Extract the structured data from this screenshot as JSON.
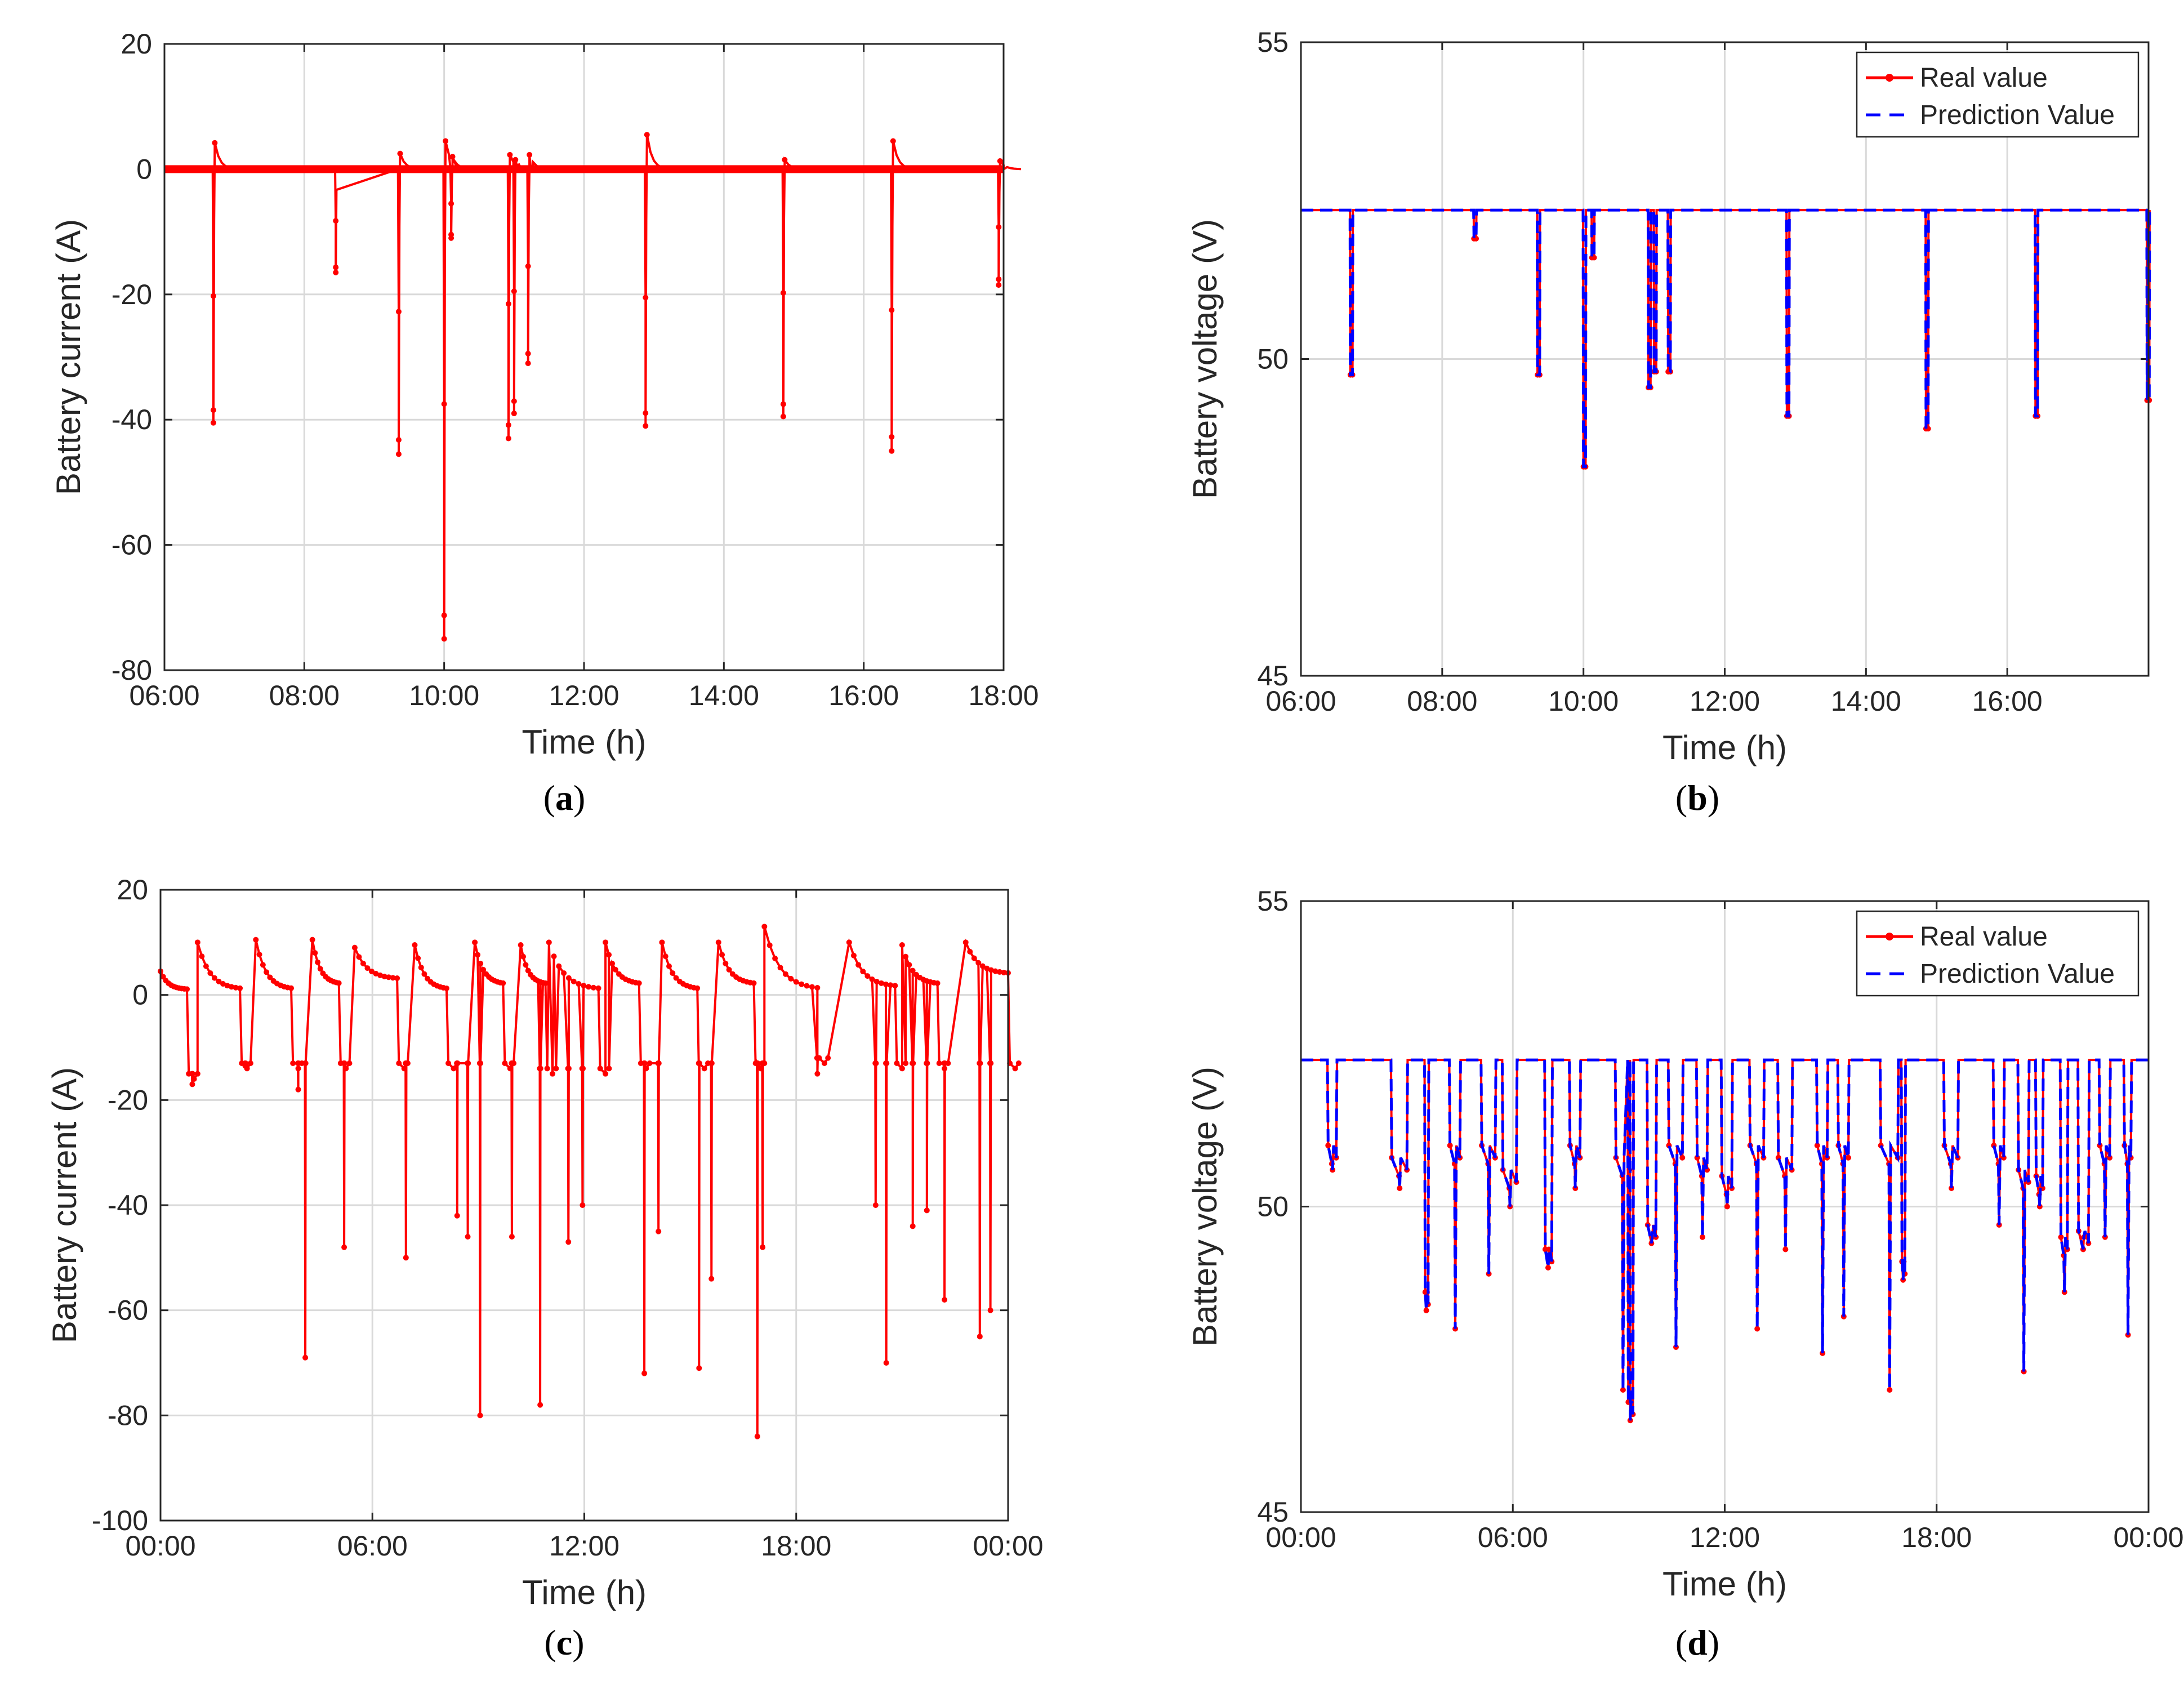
{
  "figure": {
    "panel_labels": [
      "a",
      "b",
      "c",
      "d"
    ]
  },
  "colors": {
    "real": "#ff0000",
    "prediction": "#0000ff",
    "grid": "#d9d9d9",
    "axis": "#000000"
  },
  "chart_data": [
    {
      "id": "a",
      "type": "line",
      "xlabel": "Time (h)",
      "ylabel": "Battery current (A)",
      "xlim": [
        6,
        18
      ],
      "ylim": [
        -80,
        20
      ],
      "xticks": [
        6,
        8,
        10,
        12,
        14,
        16,
        18
      ],
      "xtick_labels": [
        "06:00",
        "08:00",
        "10:00",
        "12:00",
        "14:00",
        "16:00",
        "18:00"
      ],
      "yticks": [
        -80,
        -60,
        -40,
        -20,
        0,
        20
      ],
      "ytick_labels": [
        "-80",
        "-60",
        "-40",
        "-20",
        "0",
        "20"
      ],
      "grid": true,
      "legend": null,
      "baseline": 0,
      "series": [
        {
          "name": "Real value",
          "color": "#ff0000",
          "style": "solid-marker",
          "spikes": [
            {
              "t": 6.7,
              "min": -40.5,
              "peak": 4.2
            },
            {
              "t": 8.45,
              "min": -16.5,
              "peak": 0
            },
            {
              "t": 9.35,
              "min": -45.5,
              "peak": 2.5
            },
            {
              "t": 10.0,
              "min": -75.0,
              "peak": 4.5
            },
            {
              "t": 10.1,
              "min": -11.0,
              "peak": 2.0
            },
            {
              "t": 10.92,
              "min": -43.0,
              "peak": 2.3
            },
            {
              "t": 11.0,
              "min": -39.0,
              "peak": 1.5
            },
            {
              "t": 11.2,
              "min": -31.0,
              "peak": 2.3
            },
            {
              "t": 12.88,
              "min": -41.0,
              "peak": 5.5
            },
            {
              "t": 14.85,
              "min": -39.5,
              "peak": 1.5
            },
            {
              "t": 16.4,
              "min": -45.0,
              "peak": 4.5
            },
            {
              "t": 17.93,
              "min": -18.5,
              "peak": 1.3
            }
          ]
        }
      ]
    },
    {
      "id": "b",
      "type": "line",
      "xlabel": "Time (h)",
      "ylabel": "Battery voltage (V)",
      "xlim": [
        6,
        18
      ],
      "ylim": [
        45,
        55
      ],
      "xticks": [
        6,
        8,
        10,
        12,
        14,
        16
      ],
      "xtick_labels": [
        "06:00",
        "08:00",
        "10:00",
        "12:00",
        "14:00",
        "16:00"
      ],
      "yticks": [
        45,
        50,
        55
      ],
      "ytick_labels": [
        "45",
        "50",
        "55"
      ],
      "grid": true,
      "legend": "top-right",
      "baseline": 52.35,
      "series": [
        {
          "name": "Real value",
          "color": "#ff0000",
          "style": "solid-marker"
        },
        {
          "name": "Prediction Value",
          "color": "#0000ff",
          "style": "dashed"
        }
      ],
      "dips": [
        {
          "t": 6.7,
          "min": 49.75
        },
        {
          "t": 8.45,
          "min": 51.9
        },
        {
          "t": 9.35,
          "min": 49.75
        },
        {
          "t": 10.0,
          "min": 48.3
        },
        {
          "t": 10.12,
          "min": 51.6
        },
        {
          "t": 10.92,
          "min": 49.55
        },
        {
          "t": 11.0,
          "min": 49.8
        },
        {
          "t": 11.2,
          "min": 49.8
        },
        {
          "t": 12.88,
          "min": 49.1
        },
        {
          "t": 14.85,
          "min": 48.9
        },
        {
          "t": 16.4,
          "min": 49.1
        },
        {
          "t": 17.98,
          "min": 49.35
        }
      ]
    },
    {
      "id": "c",
      "type": "line",
      "xlabel": "Time (h)",
      "ylabel": "Battery current (A)",
      "xlim": [
        0,
        24
      ],
      "ylim": [
        -100,
        20
      ],
      "xticks": [
        0,
        6,
        12,
        18,
        24
      ],
      "xtick_labels": [
        "00:00",
        "06:00",
        "12:00",
        "18:00",
        "00:00"
      ],
      "yticks": [
        -100,
        -80,
        -60,
        -40,
        -20,
        0,
        20
      ],
      "ytick_labels": [
        "-100",
        "-80",
        "-60",
        "-40",
        "-20",
        "0",
        "20"
      ],
      "grid": true,
      "legend": null,
      "series": [
        {
          "name": "Real value",
          "color": "#ff0000",
          "style": "solid-marker",
          "cycles": [
            {
              "t0": 0.0,
              "t1": 0.75,
              "start": 4.5,
              "end": 1.0,
              "plateau": -15.0,
              "spikes": [
                {
                  "t": 0.9,
                  "min": -17
                }
              ]
            },
            {
              "t0": 1.05,
              "t1": 2.25,
              "start": 10.0,
              "end": 1.0,
              "plateau": -13.0,
              "spikes": [
                {
                  "t": 2.4,
                  "min": -13.5
                }
              ]
            },
            {
              "t0": 2.7,
              "t1": 3.7,
              "start": 10.5,
              "end": 1.0,
              "plateau": -13.0,
              "spikes": [
                {
                  "t": 3.9,
                  "min": -18
                }
              ]
            },
            {
              "t0": 4.3,
              "t1": 5.05,
              "start": 10.5,
              "end": 2.0,
              "plateau": -13.0,
              "spikes": [
                {
                  "t": 4.1,
                  "min": -69
                },
                {
                  "t": 5.2,
                  "min": -48
                }
              ]
            },
            {
              "t0": 5.5,
              "t1": 6.7,
              "start": 9.0,
              "end": 3.0,
              "plateau": -13.0,
              "spikes": [
                {
                  "t": 6.95,
                  "min": -50
                }
              ]
            },
            {
              "t0": 7.2,
              "t1": 8.1,
              "start": 9.5,
              "end": 1.0,
              "plateau": -13.0,
              "spikes": [
                {
                  "t": 8.4,
                  "min": -42
                },
                {
                  "t": 8.7,
                  "min": -46
                }
              ]
            },
            {
              "t0": 8.9,
              "t1": 9.7,
              "start": 10.0,
              "end": 2.0,
              "plateau": -13.0,
              "spikes": [
                {
                  "t": 9.05,
                  "min": -80
                },
                {
                  "t": 9.95,
                  "min": -46
                }
              ]
            },
            {
              "t0": 10.2,
              "t1": 10.9,
              "start": 9.5,
              "end": 2.0,
              "plateau": -14.0,
              "spikes": [
                {
                  "t": 10.75,
                  "min": -78
                },
                {
                  "t": 11.55,
                  "min": -47
                }
              ]
            },
            {
              "t0": 11.0,
              "t1": 12.4,
              "start": 10.0,
              "end": 1.0,
              "plateau": -14.0,
              "spikes": [
                {
                  "t": 11.95,
                  "min": -40
                }
              ]
            },
            {
              "t0": 12.6,
              "t1": 13.55,
              "start": 10.0,
              "end": 2.0,
              "plateau": -13.0,
              "spikes": [
                {
                  "t": 13.7,
                  "min": -72
                },
                {
                  "t": 14.1,
                  "min": -45
                }
              ]
            },
            {
              "t0": 14.2,
              "t1": 15.2,
              "start": 10.0,
              "end": 1.0,
              "plateau": -13.0,
              "spikes": [
                {
                  "t": 15.25,
                  "min": -71
                },
                {
                  "t": 15.6,
                  "min": -54
                }
              ]
            },
            {
              "t0": 15.8,
              "t1": 16.8,
              "start": 10.0,
              "end": 2.0,
              "plateau": -13.0,
              "spikes": [
                {
                  "t": 16.9,
                  "min": -84
                },
                {
                  "t": 17.05,
                  "min": -48
                }
              ]
            },
            {
              "t0": 17.1,
              "t1": 18.6,
              "start": 13.0,
              "end": 1.0,
              "plateau": -12.0,
              "spikes": [
                {
                  "t": 18.6,
                  "min": -15
                }
              ]
            },
            {
              "t0": 19.5,
              "t1": 20.8,
              "start": 10.0,
              "end": 1.5,
              "plateau": -13.0,
              "spikes": [
                {
                  "t": 20.55,
                  "min": -70
                },
                {
                  "t": 20.25,
                  "min": -40
                }
              ]
            },
            {
              "t0": 21.0,
              "t1": 22.0,
              "start": 9.5,
              "end": 2.0,
              "plateau": -13.0,
              "spikes": [
                {
                  "t": 21.3,
                  "min": -44
                },
                {
                  "t": 21.7,
                  "min": -41
                },
                {
                  "t": 22.2,
                  "min": -58
                }
              ]
            },
            {
              "t0": 22.8,
              "t1": 24.0,
              "start": 10.0,
              "end": 4.0,
              "plateau": -13.0,
              "spikes": [
                {
                  "t": 23.5,
                  "min": -60
                },
                {
                  "t": 23.2,
                  "min": -65
                }
              ]
            }
          ]
        }
      ]
    },
    {
      "id": "d",
      "type": "line",
      "xlabel": "Time (h)",
      "ylabel": "Battery voltage (V)",
      "xlim": [
        0,
        24
      ],
      "ylim": [
        45,
        55
      ],
      "xticks": [
        0,
        6,
        12,
        18,
        24
      ],
      "xtick_labels": [
        "00:00",
        "06:00",
        "12:00",
        "18:00",
        "00:00"
      ],
      "yticks": [
        45,
        50,
        55
      ],
      "ytick_labels": [
        "45",
        "50",
        "55"
      ],
      "grid": true,
      "legend": "top-right",
      "baseline": 52.4,
      "series": [
        {
          "name": "Real value",
          "color": "#ff0000",
          "style": "solid-marker"
        },
        {
          "name": "Prediction Value",
          "color": "#0000ff",
          "style": "dashed"
        }
      ],
      "dips": [
        {
          "t0": 0.75,
          "t1": 1.0,
          "floor": 51.0,
          "min": 50.6
        },
        {
          "t0": 2.55,
          "t1": 3.0,
          "floor": 50.8,
          "min": 50.3
        },
        {
          "t0": 3.5,
          "t1": 3.6,
          "floor": 48.6,
          "min": 48.6
        },
        {
          "t0": 4.2,
          "t1": 4.5,
          "floor": 51.0,
          "min": 48.0
        },
        {
          "t0": 5.1,
          "t1": 5.5,
          "floor": 51.0,
          "min": 48.9
        },
        {
          "t0": 5.7,
          "t1": 6.1,
          "floor": 50.6,
          "min": 50.0
        },
        {
          "t0": 6.9,
          "t1": 7.1,
          "floor": 49.3,
          "min": 49.3
        },
        {
          "t0": 7.6,
          "t1": 7.9,
          "floor": 51.0,
          "min": 50.3
        },
        {
          "t0": 8.9,
          "t1": 9.3,
          "floor": 50.8,
          "min": 47.0
        },
        {
          "t0": 9.25,
          "t1": 9.4,
          "floor": 46.8,
          "min": 46.8
        },
        {
          "t0": 9.8,
          "t1": 10.05,
          "floor": 49.7,
          "min": 49.5
        },
        {
          "t0": 10.4,
          "t1": 10.8,
          "floor": 51.0,
          "min": 47.7
        },
        {
          "t0": 11.2,
          "t1": 11.5,
          "floor": 50.8,
          "min": 49.5
        },
        {
          "t0": 11.9,
          "t1": 12.2,
          "floor": 50.5,
          "min": 50.0
        },
        {
          "t0": 12.7,
          "t1": 13.1,
          "floor": 51.0,
          "min": 48.0
        },
        {
          "t0": 13.5,
          "t1": 13.9,
          "floor": 50.8,
          "min": 49.3
        },
        {
          "t0": 14.6,
          "t1": 14.9,
          "floor": 51.0,
          "min": 47.6
        },
        {
          "t0": 15.2,
          "t1": 15.5,
          "floor": 51.0,
          "min": 48.2
        },
        {
          "t0": 16.4,
          "t1": 16.9,
          "floor": 51.0,
          "min": 47.0
        },
        {
          "t0": 17.0,
          "t1": 17.1,
          "floor": 49.1,
          "min": 49.1
        },
        {
          "t0": 18.2,
          "t1": 18.6,
          "floor": 51.0,
          "min": 50.3
        },
        {
          "t0": 19.6,
          "t1": 19.9,
          "floor": 51.0,
          "min": 49.7
        },
        {
          "t0": 20.3,
          "t1": 20.6,
          "floor": 50.6,
          "min": 47.3
        },
        {
          "t0": 20.8,
          "t1": 21.0,
          "floor": 50.5,
          "min": 50.0
        },
        {
          "t0": 21.5,
          "t1": 21.7,
          "floor": 49.5,
          "min": 48.6
        },
        {
          "t0": 22.0,
          "t1": 22.3,
          "floor": 49.6,
          "min": 49.5
        },
        {
          "t0": 22.6,
          "t1": 22.9,
          "floor": 51.0,
          "min": 49.5
        },
        {
          "t0": 23.3,
          "t1": 23.5,
          "floor": 51.0,
          "min": 47.9
        }
      ]
    }
  ]
}
